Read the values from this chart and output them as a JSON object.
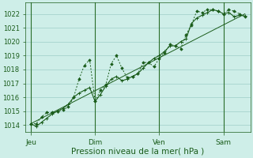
{
  "bg_color": "#ceeee8",
  "grid_color": "#9ecec8",
  "line_color": "#1a5c1a",
  "marker_color": "#1a5c1a",
  "xlabel": "Pression niveau de la mer( hPa )",
  "xlabel_fontsize": 7.5,
  "ylim": [
    1013.5,
    1022.8
  ],
  "yticks": [
    1014,
    1015,
    1016,
    1017,
    1018,
    1019,
    1020,
    1021,
    1022
  ],
  "ytick_fontsize": 6.0,
  "xtick_labels": [
    "Jeu",
    "Dim",
    "Ven",
    "Sam"
  ],
  "xtick_positions": [
    0,
    36,
    72,
    108
  ],
  "xtick_fontsize": 6.5,
  "vline_color": "#2a6e2a",
  "xlim_min": -3,
  "xlim_max": 123,
  "series1_x": [
    0,
    3,
    6,
    9,
    12,
    15,
    18,
    21,
    24,
    27,
    30,
    33,
    36,
    39,
    42,
    45,
    48,
    51,
    54,
    57,
    60,
    63,
    66,
    69,
    72,
    75,
    78,
    81,
    84,
    87,
    90,
    93,
    96,
    99,
    102,
    105,
    108,
    111,
    114,
    117,
    120
  ],
  "series1_y": [
    1014.1,
    1013.9,
    1014.2,
    1014.5,
    1014.8,
    1015.0,
    1015.2,
    1015.5,
    1016.0,
    1016.3,
    1016.5,
    1016.7,
    1015.7,
    1016.2,
    1016.8,
    1017.3,
    1017.5,
    1017.2,
    1017.3,
    1017.5,
    1017.7,
    1018.1,
    1018.5,
    1018.8,
    1019.0,
    1019.3,
    1019.7,
    1019.7,
    1020.0,
    1020.2,
    1021.3,
    1021.7,
    1021.9,
    1022.1,
    1022.3,
    1022.2,
    1022.0,
    1022.1,
    1021.8,
    1021.9,
    1021.85
  ],
  "series2_x": [
    0,
    3,
    6,
    9,
    12,
    15,
    18,
    21,
    24,
    27,
    30,
    33,
    36,
    39,
    42,
    45,
    48,
    51,
    54,
    57,
    60,
    63,
    66,
    69,
    72,
    75,
    78,
    81,
    84,
    87,
    90,
    93,
    96,
    99,
    102,
    105,
    108,
    111,
    114,
    117,
    120
  ],
  "series2_y": [
    1014.1,
    1014.1,
    1014.6,
    1014.9,
    1014.9,
    1015.0,
    1015.1,
    1015.3,
    1016.0,
    1017.3,
    1018.3,
    1018.7,
    1015.7,
    1016.5,
    1016.9,
    1018.4,
    1019.0,
    1018.1,
    1017.4,
    1017.5,
    1017.7,
    1018.5,
    1018.5,
    1018.2,
    1018.8,
    1019.2,
    1019.8,
    1019.7,
    1019.5,
    1020.5,
    1021.2,
    1022.2,
    1022.1,
    1022.3,
    1022.3,
    1022.2,
    1022.0,
    1022.3,
    1022.2,
    1022.0,
    1021.8
  ],
  "trend_x": [
    0,
    120
  ],
  "trend_y": [
    1014.1,
    1022.0
  ]
}
